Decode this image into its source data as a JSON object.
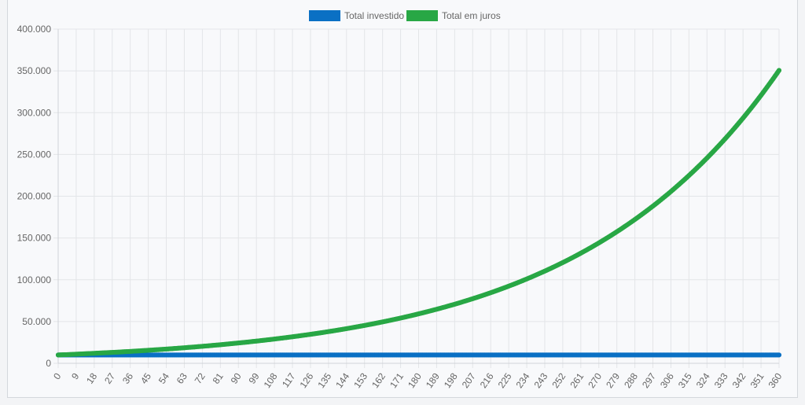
{
  "chart_data": {
    "type": "line",
    "title": "",
    "xlabel": "",
    "ylabel": "",
    "x_range": [
      0,
      360
    ],
    "x_tick_step": 9,
    "ylim": [
      0,
      400000
    ],
    "y_ticks": [
      "0",
      "50.000",
      "100.000",
      "150.000",
      "200.000",
      "250.000",
      "300.000",
      "350.000",
      "400.000"
    ],
    "grid": true,
    "legend_position": "top-center",
    "series": [
      {
        "name": "Total investido",
        "color": "#0a70c4",
        "initial_value": 10000,
        "monthly_rate": 0,
        "end_value": 10000
      },
      {
        "name": "Total em juros",
        "color": "#28a745",
        "initial_value": 10000,
        "monthly_rate": 0.00993,
        "end_value": 359000
      }
    ]
  }
}
